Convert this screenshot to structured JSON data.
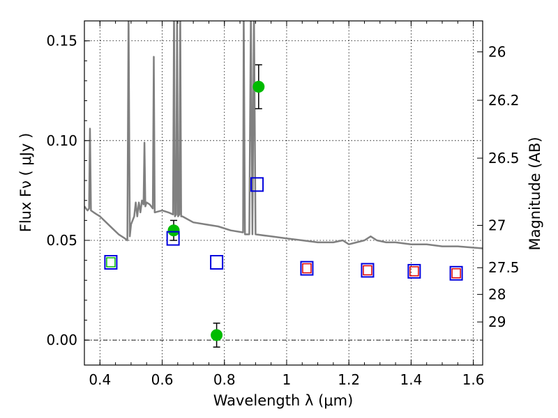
{
  "chart_data": {
    "type": "scatter",
    "title": "",
    "xlabel": "Wavelength  λ (μm)",
    "ylabel": "Flux  Fν  ( μJy )",
    "y2label": "Magnitude (AB)",
    "xlim": [
      0.35,
      1.63
    ],
    "ylim": [
      -0.0125,
      0.16
    ],
    "x_ticks": [
      0.4,
      0.6,
      0.8,
      1.0,
      1.2,
      1.4,
      1.6
    ],
    "x_tick_labels": [
      "0.4",
      "0.6",
      "0.8",
      "1",
      "1.2",
      "1.4",
      "1.6"
    ],
    "y_ticks": [
      0.0,
      0.05,
      0.1,
      0.15
    ],
    "y_tick_labels": [
      "0.00",
      "0.05",
      "0.10",
      "0.15"
    ],
    "y2_ticks": [
      {
        "label": "26",
        "flux": 0.1445
      },
      {
        "label": "26.2",
        "flux": 0.1202
      },
      {
        "label": "26.5",
        "flux": 0.0912
      },
      {
        "label": "27",
        "flux": 0.0575
      },
      {
        "label": "27.5",
        "flux": 0.0363
      },
      {
        "label": "28",
        "flux": 0.0229
      },
      {
        "label": "29",
        "flux": 0.0091
      }
    ],
    "grid": true,
    "series": [
      {
        "type": "line",
        "color": "#808080",
        "points": [
          [
            0.35,
            0.067
          ],
          [
            0.36,
            0.065
          ],
          [
            0.365,
            0.066
          ],
          [
            0.368,
            0.106
          ],
          [
            0.371,
            0.065
          ],
          [
            0.38,
            0.064
          ],
          [
            0.39,
            0.063
          ],
          [
            0.4,
            0.062
          ],
          [
            0.42,
            0.059
          ],
          [
            0.44,
            0.056
          ],
          [
            0.46,
            0.053
          ],
          [
            0.48,
            0.051
          ],
          [
            0.488,
            0.05
          ],
          [
            0.492,
            0.165
          ],
          [
            0.496,
            0.052
          ],
          [
            0.5,
            0.058
          ],
          [
            0.51,
            0.062
          ],
          [
            0.515,
            0.069
          ],
          [
            0.52,
            0.062
          ],
          [
            0.525,
            0.069
          ],
          [
            0.53,
            0.064
          ],
          [
            0.535,
            0.07
          ],
          [
            0.54,
            0.068
          ],
          [
            0.543,
            0.099
          ],
          [
            0.546,
            0.067
          ],
          [
            0.55,
            0.069
          ],
          [
            0.56,
            0.068
          ],
          [
            0.57,
            0.066
          ],
          [
            0.573,
            0.142
          ],
          [
            0.576,
            0.064
          ],
          [
            0.6,
            0.065
          ],
          [
            0.62,
            0.064
          ],
          [
            0.635,
            0.063
          ],
          [
            0.638,
            0.165
          ],
          [
            0.641,
            0.062
          ],
          [
            0.645,
            0.063
          ],
          [
            0.648,
            0.165
          ],
          [
            0.651,
            0.062
          ],
          [
            0.655,
            0.063
          ],
          [
            0.658,
            0.165
          ],
          [
            0.661,
            0.062
          ],
          [
            0.665,
            0.062
          ],
          [
            0.7,
            0.059
          ],
          [
            0.74,
            0.058
          ],
          [
            0.78,
            0.057
          ],
          [
            0.82,
            0.055
          ],
          [
            0.86,
            0.054
          ],
          [
            0.862,
            0.165
          ],
          [
            0.866,
            0.053
          ],
          [
            0.88,
            0.053
          ],
          [
            0.885,
            0.165
          ],
          [
            0.89,
            0.053
          ],
          [
            0.895,
            0.165
          ],
          [
            0.9,
            0.053
          ],
          [
            0.95,
            0.052
          ],
          [
            1.0,
            0.051
          ],
          [
            1.05,
            0.05
          ],
          [
            1.1,
            0.049
          ],
          [
            1.15,
            0.049
          ],
          [
            1.18,
            0.05
          ],
          [
            1.2,
            0.048
          ],
          [
            1.25,
            0.05
          ],
          [
            1.27,
            0.052
          ],
          [
            1.29,
            0.05
          ],
          [
            1.32,
            0.049
          ],
          [
            1.35,
            0.049
          ],
          [
            1.4,
            0.048
          ],
          [
            1.45,
            0.048
          ],
          [
            1.5,
            0.047
          ],
          [
            1.55,
            0.047
          ],
          [
            1.63,
            0.046
          ]
        ]
      },
      {
        "type": "scatter",
        "marker": "circle",
        "color": "#00bb00",
        "points": [
          {
            "x": 0.637,
            "y": 0.055,
            "err": 0.005
          },
          {
            "x": 0.775,
            "y": 0.0025,
            "err": 0.006
          },
          {
            "x": 0.91,
            "y": 0.127,
            "err": 0.011
          }
        ]
      },
      {
        "type": "scatter",
        "marker": "square-open",
        "color": "#0000dd",
        "points": [
          {
            "x": 0.435,
            "y": 0.039
          },
          {
            "x": 0.635,
            "y": 0.051
          },
          {
            "x": 0.775,
            "y": 0.039
          },
          {
            "x": 0.905,
            "y": 0.078
          },
          {
            "x": 1.065,
            "y": 0.036
          },
          {
            "x": 1.26,
            "y": 0.035
          },
          {
            "x": 1.41,
            "y": 0.0345
          },
          {
            "x": 1.545,
            "y": 0.0335
          }
        ]
      },
      {
        "type": "scatter",
        "marker": "square-open-small",
        "color": "#dd0000",
        "points": [
          {
            "x": 1.065,
            "y": 0.036
          },
          {
            "x": 1.26,
            "y": 0.035
          },
          {
            "x": 1.41,
            "y": 0.0345
          },
          {
            "x": 1.545,
            "y": 0.0335
          }
        ]
      },
      {
        "type": "scatter",
        "marker": "square-open-small",
        "color": "#00bb00",
        "points": [
          {
            "x": 0.435,
            "y": 0.039
          }
        ]
      }
    ]
  }
}
